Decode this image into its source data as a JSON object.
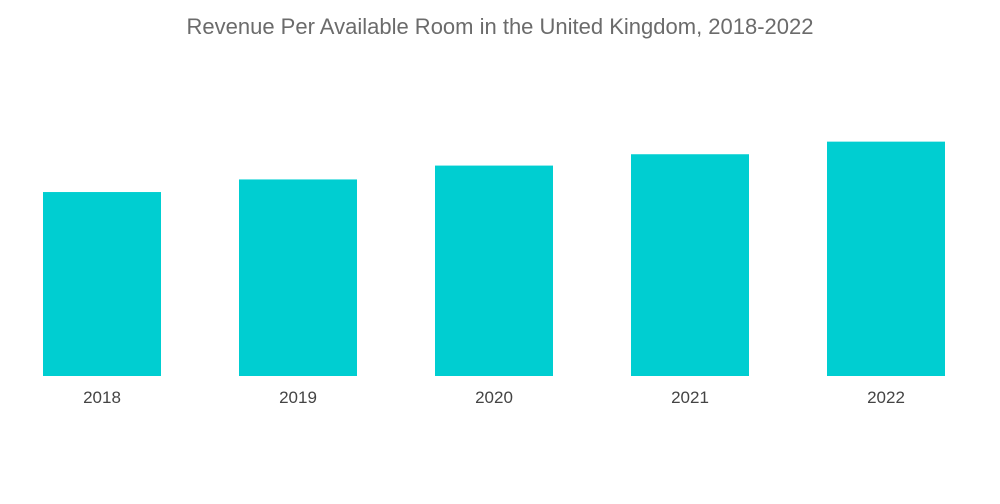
{
  "chart_data": {
    "type": "bar",
    "title": "Revenue Per Available Room in the United Kingdom, 2018-2022",
    "categories": [
      "2018",
      "2019",
      "2020",
      "2021",
      "2022"
    ],
    "values": [
      73,
      78,
      83.5,
      88,
      93
    ],
    "xlabel": "",
    "ylabel": "",
    "ylim": [
      0,
      100
    ],
    "grid": false,
    "legend": "none",
    "bar_color": "#00CED1"
  }
}
